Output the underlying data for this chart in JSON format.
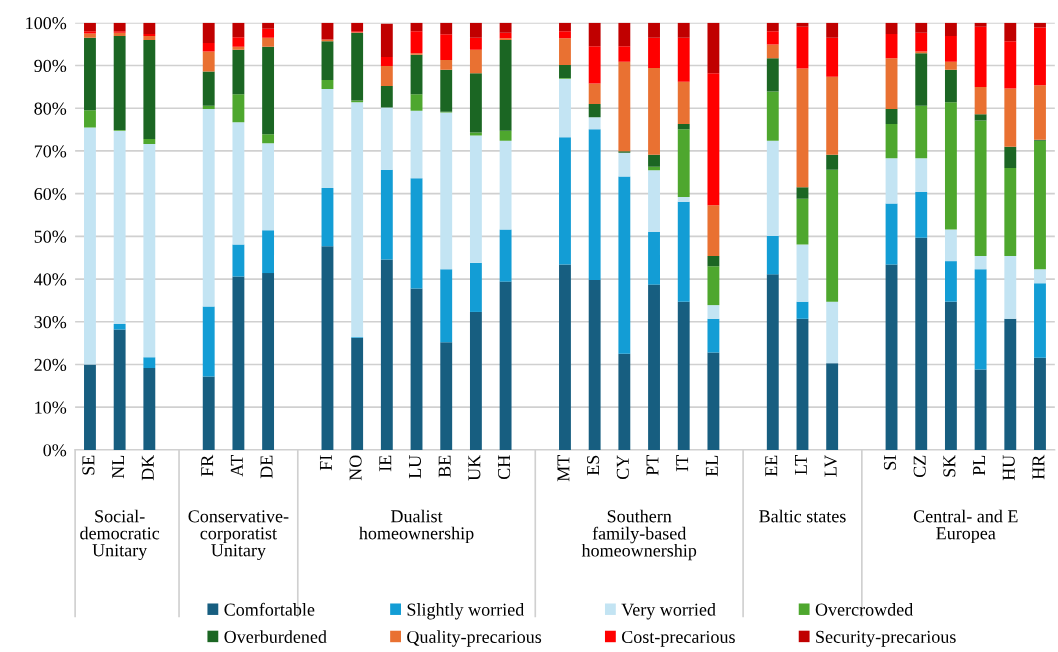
{
  "chart_data": {
    "type": "bar",
    "stacked": true,
    "grid": "y",
    "legend": "bottom",
    "categories": [
      "SE",
      "NL",
      "DK",
      null,
      "FR",
      "AT",
      "DE",
      null,
      "FI",
      "NO",
      "IE",
      "LU",
      "BE",
      "UK",
      "CH",
      null,
      "MT",
      "ES",
      "CY",
      "PT",
      "IT",
      "EL",
      null,
      "EE",
      "LT",
      "LV",
      null,
      "SI",
      "CZ",
      "SK",
      "PL",
      "HU",
      "HR"
    ],
    "series": [
      {
        "name": "Comfortable",
        "color": "#175e80",
        "values": [
          20,
          28.2,
          19.2,
          null,
          17.2,
          40.6,
          41.4,
          null,
          47.7,
          26.2,
          44.6,
          37.8,
          25.2,
          32.3,
          39.4,
          null,
          43.4,
          39.8,
          22.5,
          38.7,
          34.7,
          22.8,
          null,
          41.1,
          30.7,
          20.3,
          null,
          43.4,
          49.7,
          34.7,
          18.8,
          30.7,
          21.6
        ]
      },
      {
        "name": "Slightly worried",
        "color": "#139dd5",
        "values": [
          0,
          1.3,
          2.5,
          null,
          16.4,
          7.5,
          10,
          null,
          13.6,
          0.2,
          21,
          25.8,
          17.1,
          11.5,
          12.2,
          null,
          29.8,
          35.3,
          41.5,
          12.3,
          23.4,
          7.9,
          null,
          9,
          4,
          0,
          null,
          14.3,
          10.7,
          9.5,
          23.5,
          0,
          17.4
        ]
      },
      {
        "name": "Very worried",
        "color": "#c3e4f3",
        "values": [
          55.5,
          45.2,
          49.9,
          null,
          46.2,
          28.6,
          20.4,
          null,
          23.2,
          55,
          14.6,
          15.8,
          36.7,
          29.8,
          20.8,
          null,
          13.7,
          2.8,
          5.6,
          14.5,
          1.1,
          3.2,
          null,
          22.3,
          13.4,
          14.4,
          null,
          10.6,
          7.9,
          7.4,
          3.1,
          14.7,
          3.3
        ]
      },
      {
        "name": "Overcrowded",
        "color": "#4ea72e",
        "values": [
          4,
          0.2,
          1.2,
          null,
          0.8,
          6.6,
          2.1,
          null,
          2.1,
          0.4,
          null,
          3.9,
          0.2,
          0.7,
          2.3,
          null,
          0.2,
          0,
          0,
          0.8,
          15.9,
          9.1,
          null,
          11.5,
          10.7,
          30.9,
          null,
          8,
          12.3,
          29.8,
          31.7,
          20.6,
          30.1
        ]
      },
      {
        "name": "Overburdened",
        "color": "#1b6623",
        "values": [
          17,
          22,
          23.2,
          null,
          8,
          10.4,
          20.5,
          null,
          9.1,
          15.9,
          5,
          9.2,
          9.8,
          13.9,
          21.3,
          null,
          3,
          3.1,
          0.3,
          2.8,
          1.2,
          2.4,
          null,
          7.8,
          2.7,
          3.5,
          null,
          3.5,
          12.3,
          7.6,
          1.5,
          5,
          0.2
        ]
      },
      {
        "name": "Quality-precarious",
        "color": "#e97132",
        "values": [
          1,
          0.8,
          0.9,
          null,
          4.7,
          0.7,
          2.1,
          null,
          0.4,
          0.1,
          4.7,
          0.4,
          2.3,
          5.5,
          0.4,
          null,
          6.3,
          4.8,
          21,
          20.3,
          9.9,
          11.9,
          null,
          3.2,
          27.8,
          18.3,
          null,
          11.9,
          0.4,
          1.9,
          6.4,
          13.6,
          12.8
        ]
      },
      {
        "name": "Cost-precarious",
        "color": "#ff0000",
        "values": [
          0.5,
          0.3,
          0.5,
          null,
          2,
          2.2,
          2.1,
          null,
          0,
          0.2,
          2.1,
          5.1,
          6,
          2.8,
          1.3,
          null,
          1.6,
          8.7,
          3.6,
          7.1,
          10.3,
          30.9,
          null,
          3.1,
          9.8,
          9.1,
          null,
          5.7,
          4.4,
          6,
          14.1,
          11.1,
          13.5
        ]
      },
      {
        "name": "Security-precarious",
        "color": "#c00000",
        "values": [
          2,
          2,
          2.6,
          null,
          4.7,
          3.4,
          1.4,
          null,
          3.9,
          2,
          7.8,
          2,
          2.7,
          3.5,
          2.3,
          null,
          2,
          5.5,
          5.5,
          3.5,
          3.5,
          11.8,
          null,
          2,
          0.9,
          3.5,
          null,
          2.6,
          2.3,
          3.1,
          0.9,
          4.3,
          1.1
        ]
      }
    ],
    "ylim": [
      0,
      100
    ],
    "yticks": [
      {
        "value": 0,
        "label": "0%"
      },
      {
        "value": 10,
        "label": "10%"
      },
      {
        "value": 20,
        "label": "20%"
      },
      {
        "value": 30,
        "label": "30%"
      },
      {
        "value": 40,
        "label": "40%"
      },
      {
        "value": 50,
        "label": "50%"
      },
      {
        "value": 60,
        "label": "60%"
      },
      {
        "value": 70,
        "label": "70%"
      },
      {
        "value": 80,
        "label": "80%"
      },
      {
        "value": 90,
        "label": "90%"
      },
      {
        "value": 100,
        "label": "100%"
      }
    ],
    "annotations": [
      "Social-\ndemocratic\nUnitary",
      "Conservative-\ncorporatist\nUnitary",
      "Dualist\nhomeownership",
      "Southern\nfamily-based\nhomeownership",
      "Baltic states",
      "Central- and E\nEuropea"
    ]
  }
}
